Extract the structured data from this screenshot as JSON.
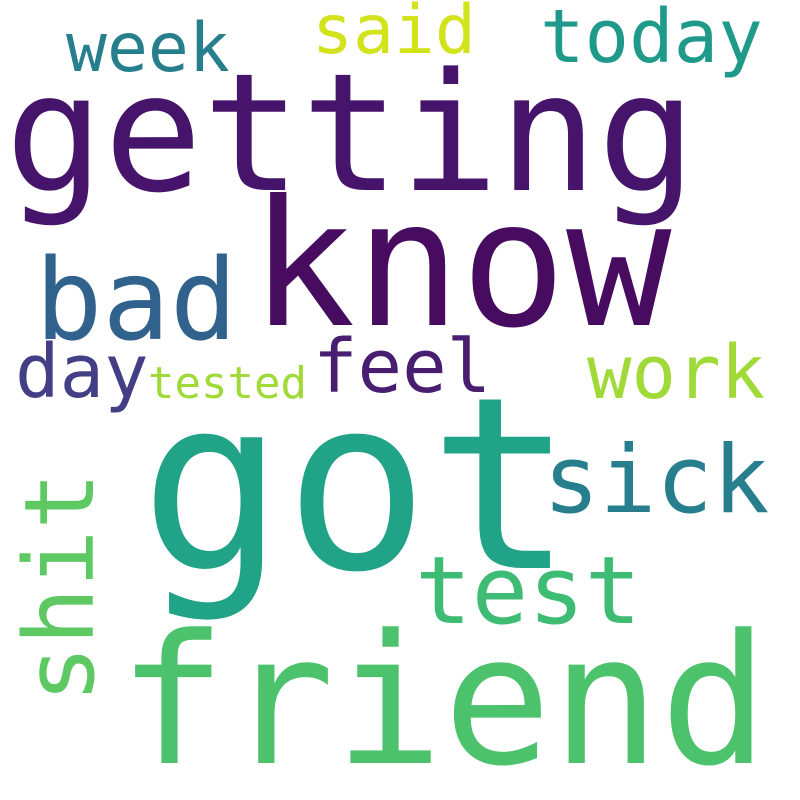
{
  "words": {
    "getting": {
      "text": "getting",
      "color": "#46156b"
    },
    "know": {
      "text": "know",
      "color": "#470b60"
    },
    "got": {
      "text": "got",
      "color": "#20a386"
    },
    "friend": {
      "text": "friend",
      "color": "#4cc26c"
    },
    "sick": {
      "text": "sick",
      "color": "#277f8e"
    },
    "test": {
      "text": "test",
      "color": "#3fbc74"
    },
    "shit": {
      "text": "shit",
      "color": "#5ec962"
    },
    "bad": {
      "text": "bad",
      "color": "#31628d"
    },
    "feel": {
      "text": "feel",
      "color": "#481f70"
    },
    "work": {
      "text": "work",
      "color": "#a0da39"
    },
    "day": {
      "text": "day",
      "color": "#433e85"
    },
    "tested": {
      "text": "tested",
      "color": "#a0da39"
    },
    "week": {
      "text": "week",
      "color": "#277f8e"
    },
    "said": {
      "text": "said",
      "color": "#d2e21b"
    },
    "today": {
      "text": "today",
      "color": "#1f9a8a"
    }
  }
}
